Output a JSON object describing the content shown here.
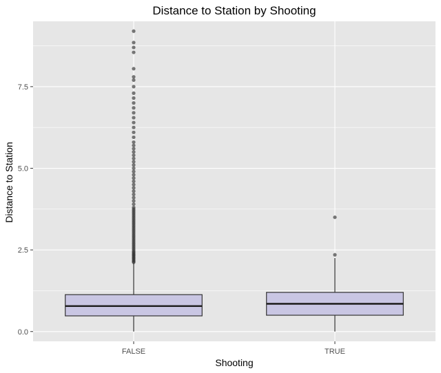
{
  "chart_data": {
    "type": "boxplot",
    "title": "Distance to Station by Shooting",
    "xlabel": "Shooting",
    "ylabel": "Distance to Station",
    "categories": [
      "FALSE",
      "TRUE"
    ],
    "ylim": [
      -0.3,
      9.5
    ],
    "yticks": [
      0.0,
      2.5,
      5.0,
      7.5
    ],
    "ytick_labels": [
      "0.0",
      "2.5",
      "5.0",
      "7.5"
    ],
    "grid": true,
    "colors": {
      "panel": "#e6e6e6",
      "grid": "#ffffff",
      "box_fill": "#c9c6e3",
      "box_stroke": "#333333",
      "outlier": "#333333"
    },
    "series": [
      {
        "category": "FALSE",
        "min": 0.0,
        "q1": 0.48,
        "median": 0.78,
        "q3": 1.13,
        "max": 2.1,
        "outliers": [
          2.12,
          2.15,
          2.18,
          2.22,
          2.25,
          2.28,
          2.32,
          2.35,
          2.38,
          2.42,
          2.45,
          2.5,
          2.55,
          2.6,
          2.65,
          2.7,
          2.75,
          2.8,
          2.85,
          2.9,
          2.95,
          3.0,
          3.05,
          3.1,
          3.15,
          3.2,
          3.25,
          3.3,
          3.35,
          3.4,
          3.45,
          3.5,
          3.55,
          3.6,
          3.65,
          3.7,
          3.75,
          3.8,
          3.9,
          4.0,
          4.1,
          4.2,
          4.3,
          4.4,
          4.5,
          4.6,
          4.7,
          4.8,
          4.9,
          5.0,
          5.1,
          5.2,
          5.3,
          5.4,
          5.5,
          5.6,
          5.7,
          5.8,
          5.95,
          6.1,
          6.25,
          6.4,
          6.55,
          6.7,
          6.85,
          7.0,
          7.15,
          7.3,
          7.5,
          7.7,
          7.8,
          8.05,
          8.55,
          8.7,
          8.85,
          9.2
        ]
      },
      {
        "category": "TRUE",
        "min": 0.0,
        "q1": 0.5,
        "median": 0.85,
        "q3": 1.2,
        "max": 2.25,
        "outliers": [
          2.35,
          3.5
        ]
      }
    ]
  }
}
